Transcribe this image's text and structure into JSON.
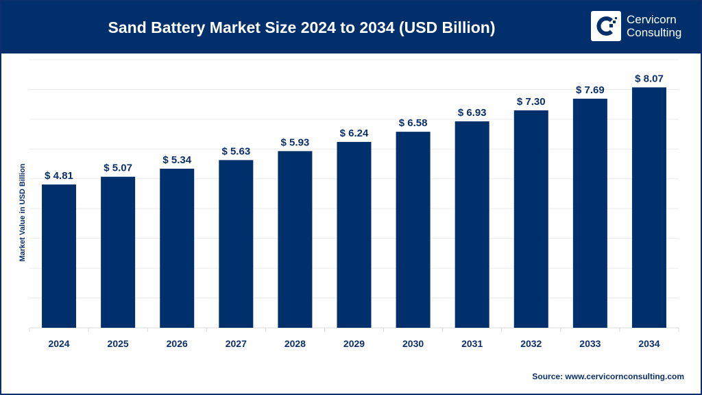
{
  "header": {
    "title": "Sand Battery Market Size 2024 to 2034 (USD Billion)",
    "logo_line1": "Cervicorn",
    "logo_line2": "Consulting"
  },
  "source": "Source: www.cervicornconsulting.com",
  "colors": {
    "bar": "#00306b",
    "header": "#002f6c",
    "text": "#0b2f6a"
  },
  "chart_data": {
    "type": "bar",
    "title": "Sand Battery Market Size 2024 to 2034 (USD Billion)",
    "xlabel": "",
    "ylabel": "Market Value in USD Billion",
    "ylim": [
      0,
      9
    ],
    "grid": true,
    "categories": [
      "2024",
      "2025",
      "2026",
      "2027",
      "2028",
      "2029",
      "2030",
      "2031",
      "2032",
      "2033",
      "2034"
    ],
    "values": [
      4.81,
      5.07,
      5.34,
      5.63,
      5.93,
      6.24,
      6.58,
      6.93,
      7.3,
      7.69,
      8.07
    ],
    "data_labels": [
      "$ 4.81",
      "$ 5.07",
      "$ 5.34",
      "$ 5.63",
      "$ 5.93",
      "$ 6.24",
      "$ 6.58",
      "$ 6.93",
      "$ 7.30",
      "$ 7.69",
      "$ 8.07"
    ]
  }
}
